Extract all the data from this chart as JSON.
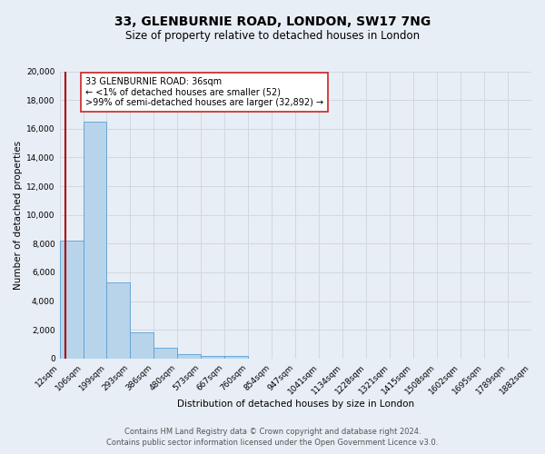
{
  "title": "33, GLENBURNIE ROAD, LONDON, SW17 7NG",
  "subtitle": "Size of property relative to detached houses in London",
  "xlabel": "Distribution of detached houses by size in London",
  "ylabel": "Number of detached properties",
  "bin_labels": [
    "12sqm",
    "106sqm",
    "199sqm",
    "293sqm",
    "386sqm",
    "480sqm",
    "573sqm",
    "667sqm",
    "760sqm",
    "854sqm",
    "947sqm",
    "1041sqm",
    "1134sqm",
    "1228sqm",
    "1321sqm",
    "1415sqm",
    "1508sqm",
    "1602sqm",
    "1695sqm",
    "1789sqm",
    "1882sqm"
  ],
  "bar_values": [
    8200,
    16500,
    5300,
    1850,
    750,
    300,
    200,
    150,
    0,
    0,
    0,
    0,
    0,
    0,
    0,
    0,
    0,
    0,
    0,
    0
  ],
  "bar_color": "#b8d4ea",
  "bar_edge_color": "#5a9fd4",
  "property_line_x": 0.26,
  "property_line_color": "#aa0000",
  "annotation_text": "33 GLENBURNIE ROAD: 36sqm\n← <1% of detached houses are smaller (52)\n>99% of semi-detached houses are larger (32,892) →",
  "annotation_box_color": "#ffffff",
  "annotation_box_edge_color": "#cc2222",
  "ylim": [
    0,
    20000
  ],
  "yticks": [
    0,
    2000,
    4000,
    6000,
    8000,
    10000,
    12000,
    14000,
    16000,
    18000,
    20000
  ],
  "footer_line1": "Contains HM Land Registry data © Crown copyright and database right 2024.",
  "footer_line2": "Contains public sector information licensed under the Open Government Licence v3.0.",
  "background_color": "#e8eef5",
  "plot_bg_color": "#e8eef5",
  "grid_color": "#d0d8e0",
  "title_fontsize": 10,
  "subtitle_fontsize": 8.5,
  "axis_label_fontsize": 7.5,
  "tick_fontsize": 6.5,
  "annotation_fontsize": 7,
  "footer_fontsize": 6
}
